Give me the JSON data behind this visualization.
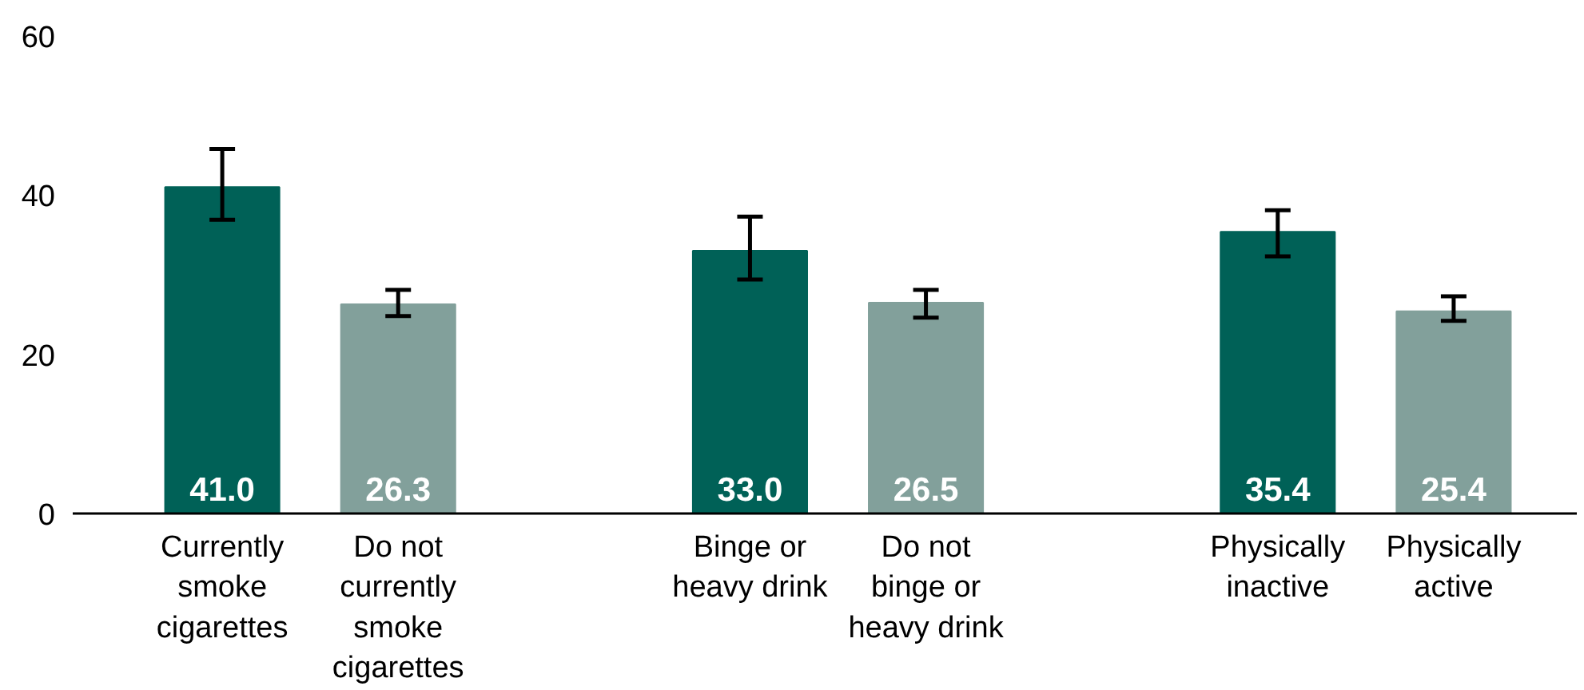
{
  "chart_data": {
    "type": "bar",
    "categories": [
      "Currently smoke cigarettes",
      "Do not currently smoke cigarettes",
      null,
      "Binge or heavy drink",
      "Do not binge or heavy drink",
      null,
      "Physically inactive",
      "Physically active"
    ],
    "values": [
      41.0,
      26.3,
      null,
      33.0,
      26.5,
      null,
      35.4,
      25.4
    ],
    "colors": [
      "#006157",
      "#82a09b",
      null,
      "#006157",
      "#82a09b",
      null,
      "#006157",
      "#82a09b"
    ],
    "errors": [
      [
        36.9,
        45.8
      ],
      [
        24.8,
        28.1
      ],
      null,
      [
        29.4,
        37.3
      ],
      [
        24.6,
        28.1
      ],
      null,
      [
        32.3,
        38.1
      ],
      [
        24.2,
        27.3
      ]
    ],
    "value_labels": [
      "41.0",
      "26.3",
      null,
      "33.0",
      "26.5",
      null,
      "35.4",
      "25.4"
    ],
    "ylim": [
      0,
      60
    ],
    "yticks": [
      0,
      20,
      40,
      60
    ],
    "grid": false
  }
}
